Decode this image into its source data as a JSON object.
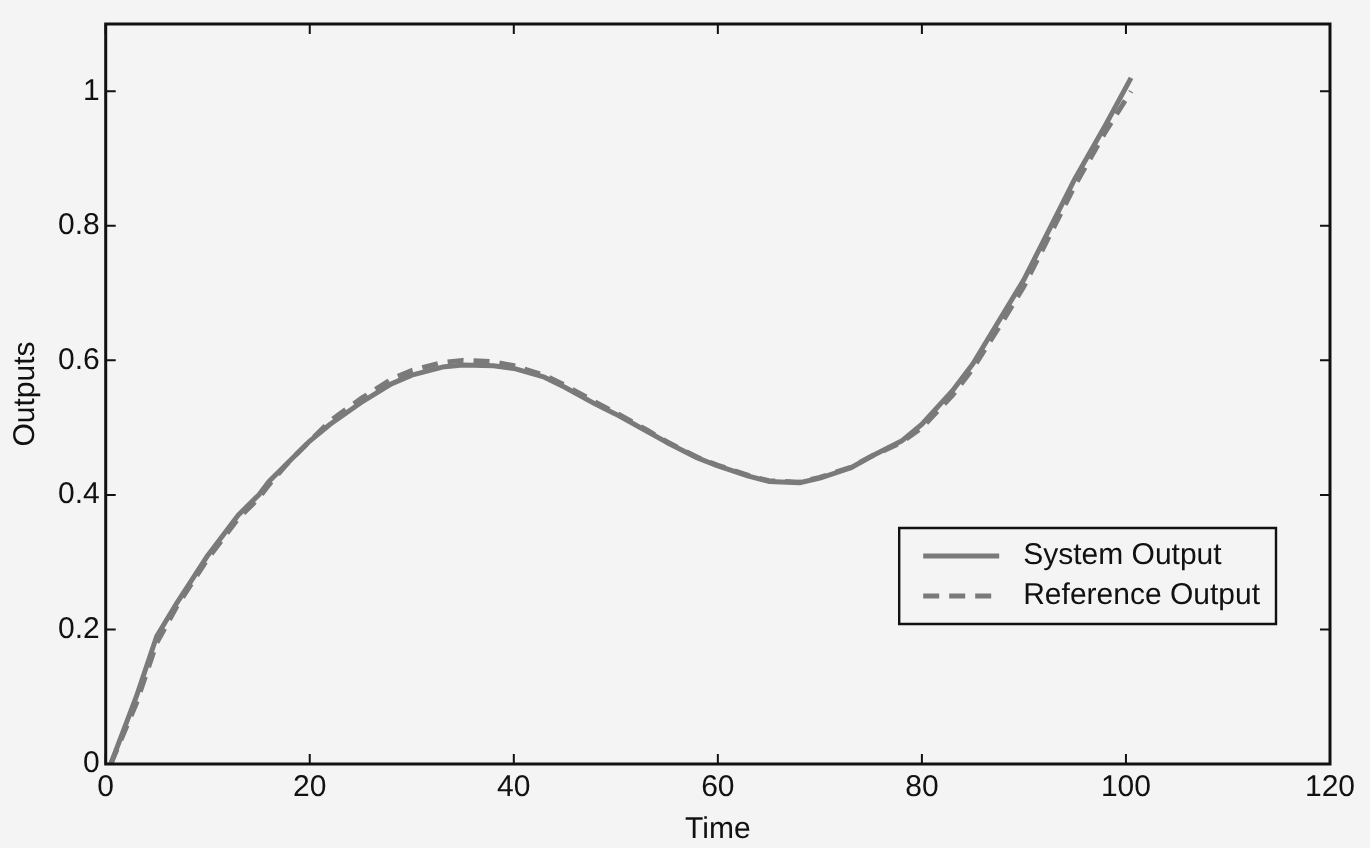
{
  "chart_data": {
    "type": "line",
    "xlabel": "Time",
    "ylabel": "Outputs",
    "xlim": [
      0,
      120
    ],
    "xticks": [
      0,
      20,
      40,
      60,
      80,
      100,
      120
    ],
    "ylim": [
      0,
      1.1
    ],
    "yticks": [
      0,
      0.2,
      0.4,
      0.6,
      0.8,
      1
    ],
    "grid": false,
    "legend": "bottom right",
    "marker": "none",
    "series": [
      {
        "name": "System Output",
        "color": "#7a7a7a",
        "line_style": "solid",
        "x": [
          0.5,
          3,
          5,
          7,
          10,
          13,
          15,
          16,
          18,
          20,
          22,
          25,
          28,
          30,
          33,
          35,
          38,
          40,
          43,
          45,
          48,
          50,
          53,
          55,
          58,
          60,
          63,
          65,
          68,
          70,
          73,
          75,
          78,
          80,
          83,
          85,
          88,
          90,
          93,
          95,
          98,
          100.5
        ],
        "values": [
          0,
          0.1,
          0.19,
          0.24,
          0.31,
          0.37,
          0.4,
          0.42,
          0.45,
          0.48,
          0.505,
          0.537,
          0.565,
          0.578,
          0.59,
          0.593,
          0.592,
          0.588,
          0.575,
          0.56,
          0.535,
          0.52,
          0.495,
          0.478,
          0.455,
          0.443,
          0.428,
          0.42,
          0.418,
          0.425,
          0.44,
          0.457,
          0.48,
          0.505,
          0.555,
          0.595,
          0.67,
          0.72,
          0.81,
          0.87,
          0.95,
          1.02
        ]
      },
      {
        "name": "Reference Output",
        "color": "#7a7a7a",
        "line_style": "dashed",
        "x": [
          0.5,
          3,
          5,
          7,
          10,
          13,
          15,
          16,
          18,
          20,
          22,
          25,
          28,
          30,
          33,
          35,
          38,
          40,
          43,
          45,
          48,
          50,
          53,
          55,
          58,
          60,
          63,
          65,
          68,
          70,
          73,
          75,
          78,
          80,
          83,
          85,
          88,
          90,
          93,
          95,
          98,
          100.5
        ],
        "values": [
          0,
          0.09,
          0.18,
          0.235,
          0.305,
          0.365,
          0.395,
          0.415,
          0.45,
          0.48,
          0.51,
          0.543,
          0.572,
          0.585,
          0.597,
          0.6,
          0.598,
          0.592,
          0.578,
          0.563,
          0.538,
          0.522,
          0.497,
          0.479,
          0.456,
          0.444,
          0.429,
          0.421,
          0.419,
          0.426,
          0.441,
          0.457,
          0.478,
          0.5,
          0.548,
          0.588,
          0.66,
          0.71,
          0.8,
          0.86,
          0.94,
          1.0
        ]
      }
    ]
  }
}
